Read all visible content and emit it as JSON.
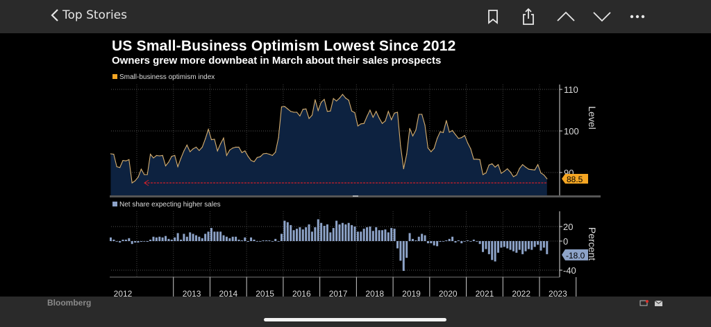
{
  "topbar": {
    "back_label": "Top Stories",
    "icons": [
      "bookmark-icon",
      "share-icon",
      "chevron-up-icon",
      "chevron-down-icon",
      "more-icon"
    ]
  },
  "footer": {
    "brand": "Bloomberg",
    "icons": [
      "screen-icon",
      "mail-icon"
    ]
  },
  "chart_data": [
    {
      "type": "area",
      "title": "US Small-Business Optimism Lowest Since 2012",
      "subtitle": "Owners grew more downbeat in March about their sales prospects",
      "legend": "Small-business optimism index",
      "ylabel": "Level",
      "yticks": [
        "90",
        "100",
        "110"
      ],
      "ylim": [
        85.5,
        111
      ],
      "x_start": "2012-04",
      "x_end": "2024-03",
      "frequency": "monthly",
      "last_value_label": "88.5",
      "colors": {
        "line": "#d8b070",
        "fill": "#0d2240",
        "label_bg": "#f5a623",
        "reference_arrow": "#d0202a"
      },
      "values": [
        94.5,
        94.4,
        91.4,
        91.2,
        92.9,
        92.8,
        93.1,
        87.5,
        88.0,
        88.9,
        90.8,
        89.5,
        89.5,
        94.4,
        93.5,
        94.1,
        94.0,
        94.1,
        91.6,
        92.5,
        93.9,
        94.1,
        91.4,
        93.4,
        95.2,
        96.6,
        95.0,
        95.7,
        96.1,
        95.3,
        96.1,
        98.1,
        100.4,
        97.9,
        98.0,
        95.2,
        96.9,
        98.3,
        94.1,
        95.4,
        95.9,
        96.1,
        96.1,
        94.8,
        95.2,
        93.9,
        92.9,
        92.6,
        93.6,
        93.8,
        94.5,
        94.6,
        94.4,
        94.1,
        94.9,
        98.4,
        105.8,
        105.9,
        105.3,
        104.7,
        104.5,
        104.5,
        103.6,
        105.2,
        105.3,
        103.0,
        103.8,
        107.5,
        104.9,
        106.9,
        107.6,
        104.7,
        104.8,
        107.8,
        107.2,
        107.9,
        108.8,
        107.9,
        107.4,
        104.8,
        104.4,
        101.2,
        101.7,
        101.8,
        103.5,
        105.0,
        103.3,
        104.7,
        103.1,
        101.8,
        102.4,
        104.7,
        102.7,
        104.3,
        104.5,
        96.4,
        90.9,
        94.4,
        100.6,
        98.8,
        100.2,
        104.0,
        104.0,
        101.4,
        95.9,
        95.0,
        95.8,
        98.2,
        99.8,
        99.6,
        102.5,
        99.7,
        100.1,
        99.1,
        98.2,
        98.4,
        98.9,
        97.1,
        95.7,
        93.2,
        93.2,
        93.1,
        89.5,
        89.9,
        91.8,
        92.1,
        91.3,
        91.9,
        89.8,
        90.3,
        90.9,
        90.1,
        89.0,
        89.4,
        91.0,
        91.9,
        91.3,
        90.8,
        90.7,
        90.6,
        91.9,
        89.9,
        89.4,
        88.5
      ]
    },
    {
      "type": "bar",
      "legend": "Net share expecting higher sales",
      "ylabel": "Percent",
      "yticks": [
        "-40",
        "0",
        "20"
      ],
      "ylim": [
        -50,
        41
      ],
      "x_start": "2012-04",
      "x_end": "2024-03",
      "frequency": "monthly",
      "last_value_label": "-18.0",
      "colors": {
        "bar": "#8da3c8",
        "label_bg": "#8da3c8"
      },
      "xtick_labels": [
        "2012",
        "2013",
        "2014",
        "2015",
        "2016",
        "2017",
        "2018",
        "2019",
        "2020",
        "2021",
        "2022",
        "2023"
      ],
      "values": [
        5,
        2,
        0,
        -2,
        2,
        2,
        4,
        -4,
        -2,
        -2,
        -1,
        0,
        -1,
        2,
        6,
        5,
        6,
        5,
        7,
        3,
        2,
        5,
        11,
        2,
        10,
        6,
        12,
        10,
        8,
        6,
        4,
        10,
        13,
        18,
        13,
        13,
        13,
        8,
        6,
        4,
        6,
        6,
        2,
        1,
        5,
        -1,
        5,
        2,
        0,
        0,
        1,
        1,
        1,
        0,
        3,
        0,
        10,
        28,
        26,
        22,
        15,
        17,
        19,
        16,
        19,
        23,
        13,
        19,
        30,
        25,
        21,
        23,
        12,
        18,
        28,
        23,
        25,
        23,
        25,
        22,
        20,
        13,
        13,
        17,
        19,
        20,
        14,
        19,
        15,
        15,
        16,
        12,
        18,
        17,
        -10,
        -27,
        -41,
        -23,
        11,
        3,
        1,
        6,
        10,
        8,
        -3,
        -3,
        -6,
        -7,
        -1,
        0,
        1,
        3,
        6,
        -2,
        1,
        -3,
        0,
        1,
        0,
        2,
        0,
        -4,
        -15,
        -11,
        -18,
        -26,
        -28,
        -16,
        -9,
        -8,
        -10,
        -12,
        -14,
        -16,
        -12,
        -18,
        -14,
        -11,
        -12,
        -8,
        -5,
        -13,
        -9,
        -18
      ]
    }
  ]
}
